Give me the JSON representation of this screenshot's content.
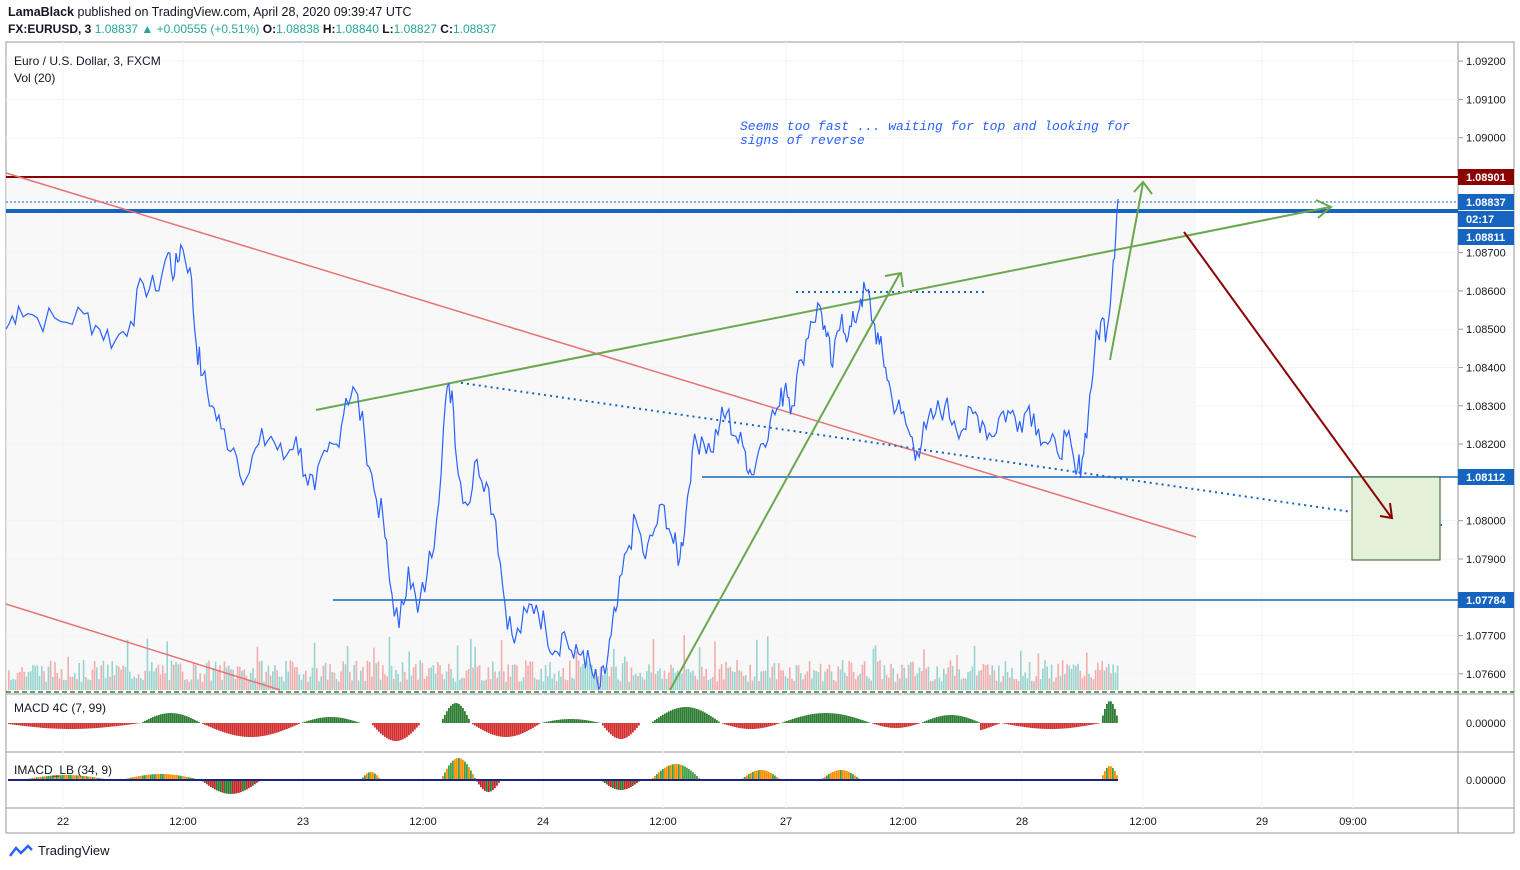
{
  "header": {
    "publisher": "LamaBlack",
    "published_text": "published on TradingView.com, April 28, 2020 09:39:47 UTC",
    "symbol": "FX:EURUSD, 3",
    "last": "1.08837",
    "change_arrow": "▲",
    "change": "+0.00555 (+0.51%)",
    "o_label": "O:",
    "o": "1.08838",
    "h_label": "H:",
    "h": "1.08840",
    "l_label": "L:",
    "l": "1.08827",
    "c_label": "C:",
    "c": "1.08837"
  },
  "legend": {
    "instrument": "Euro / U.S. Dollar, 3, FXCM",
    "volume": "Vol (20)",
    "macd": "MACD 4C (7, 99)",
    "imacd": "IMACD_LB (34, 9)"
  },
  "annotation": {
    "line1": "Seems too fast ... waiting for top and looking for",
    "line2": "signs of reverse"
  },
  "footer": {
    "brand": "TradingView",
    "logo_icon": "tradingview-logo-icon"
  },
  "colors": {
    "price_line": "#2962ff",
    "green_trend": "#6aa84f",
    "red_trend": "#e57373",
    "dark_red": "#8b0000",
    "horizontal_blue": "#1565c0",
    "macd_green": "#2e7d32",
    "macd_red": "#d32f2f"
  },
  "chart_data": {
    "type": "line",
    "symbol": "EURUSD",
    "interval": "3",
    "y_axis": {
      "ticks": [
        "1.09200",
        "1.09100",
        "1.09000",
        "1.08700",
        "1.08600",
        "1.08500",
        "1.08400",
        "1.08300",
        "1.08200",
        "1.08000",
        "1.07900",
        "1.07700",
        "1.07600"
      ],
      "range": [
        1.0755,
        1.0925
      ]
    },
    "price_labels": [
      {
        "value": "1.08901",
        "role": "resistance"
      },
      {
        "value": "1.08837",
        "role": "last"
      },
      {
        "value": "02:17",
        "role": "countdown"
      },
      {
        "value": "1.08811",
        "role": "level"
      },
      {
        "value": "1.08112",
        "role": "support"
      },
      {
        "value": "1.07784",
        "role": "support"
      }
    ],
    "x_axis": {
      "ticks": [
        "22",
        "12:00",
        "23",
        "12:00",
        "24",
        "12:00",
        "27",
        "12:00",
        "28",
        "12:00",
        "29",
        "09:00"
      ]
    },
    "macd_axis": {
      "ticks": [
        "0.00000"
      ]
    },
    "imacd_axis": {
      "ticks": [
        "0.00000"
      ]
    },
    "price_series": [
      [
        0,
        1.085
      ],
      [
        8,
        1.0856
      ],
      [
        20,
        1.0853
      ],
      [
        35,
        1.0852
      ],
      [
        50,
        1.0854
      ],
      [
        60,
        1.085
      ],
      [
        70,
        1.0847
      ],
      [
        80,
        1.0852
      ],
      [
        88,
        1.0862
      ],
      [
        96,
        1.086
      ],
      [
        104,
        1.087
      ],
      [
        108,
        1.0864
      ],
      [
        112,
        1.0872
      ],
      [
        118,
        1.0866
      ],
      [
        122,
        1.0846
      ],
      [
        126,
        1.0838
      ],
      [
        132,
        1.083
      ],
      [
        138,
        1.0824
      ],
      [
        146,
        1.0819
      ],
      [
        154,
        1.0811
      ],
      [
        162,
        1.082
      ],
      [
        170,
        1.0822
      ],
      [
        178,
        1.0816
      ],
      [
        186,
        1.0822
      ],
      [
        192,
        1.0812
      ],
      [
        198,
        1.0808
      ],
      [
        206,
        1.0818
      ],
      [
        212,
        1.082
      ],
      [
        218,
        1.0832
      ],
      [
        224,
        1.0834
      ],
      [
        230,
        1.0822
      ],
      [
        236,
        1.0808
      ],
      [
        242,
        1.08
      ],
      [
        246,
        1.0784
      ],
      [
        252,
        1.0772
      ],
      [
        258,
        1.0788
      ],
      [
        264,
        1.0776
      ],
      [
        270,
        1.0786
      ],
      [
        276,
        1.08
      ],
      [
        282,
        1.0832
      ],
      [
        286,
        1.0834
      ],
      [
        290,
        1.0812
      ],
      [
        296,
        1.0804
      ],
      [
        302,
        1.0816
      ],
      [
        308,
        1.081
      ],
      [
        314,
        1.08
      ],
      [
        320,
        1.0778
      ],
      [
        326,
        1.0768
      ],
      [
        334,
        1.0776
      ],
      [
        340,
        1.0778
      ],
      [
        346,
        1.0772
      ],
      [
        352,
        1.0766
      ],
      [
        358,
        1.0771
      ],
      [
        364,
        1.0764
      ],
      [
        370,
        1.0766
      ],
      [
        376,
        1.076
      ],
      [
        380,
        1.0756
      ],
      [
        384,
        1.076
      ],
      [
        388,
        1.077
      ],
      [
        392,
        1.0778
      ],
      [
        398,
        1.0792
      ],
      [
        404,
        1.08
      ],
      [
        410,
        1.079
      ],
      [
        416,
        1.0798
      ],
      [
        422,
        1.0804
      ],
      [
        428,
        1.0794
      ],
      [
        432,
        1.079
      ],
      [
        436,
        1.0802
      ],
      [
        440,
        1.0818
      ],
      [
        446,
        1.0822
      ],
      [
        452,
        1.0818
      ],
      [
        458,
        1.0826
      ],
      [
        462,
        1.0828
      ],
      [
        468,
        1.0822
      ],
      [
        474,
        1.0818
      ],
      [
        478,
        1.0812
      ],
      [
        484,
        1.082
      ],
      [
        490,
        1.0826
      ],
      [
        496,
        1.083
      ],
      [
        500,
        1.0836
      ],
      [
        504,
        1.083
      ],
      [
        510,
        1.0842
      ],
      [
        516,
        1.0852
      ],
      [
        522,
        1.0856
      ],
      [
        526,
        1.0848
      ],
      [
        530,
        1.084
      ],
      [
        536,
        1.0854
      ],
      [
        540,
        1.0848
      ],
      [
        544,
        1.0852
      ],
      [
        548,
        1.0858
      ],
      [
        552,
        1.086
      ],
      [
        556,
        1.0852
      ],
      [
        560,
        1.0846
      ],
      [
        564,
        1.084
      ],
      [
        568,
        1.0832
      ],
      [
        574,
        1.0828
      ],
      [
        580,
        1.0822
      ],
      [
        584,
        1.0818
      ],
      [
        590,
        1.0824
      ],
      [
        596,
        1.0828
      ],
      [
        602,
        1.083
      ],
      [
        608,
        1.0826
      ],
      [
        614,
        1.0824
      ],
      [
        620,
        1.0828
      ],
      [
        626,
        1.0826
      ],
      [
        632,
        1.0822
      ],
      [
        638,
        1.0828
      ],
      [
        644,
        1.0828
      ],
      [
        650,
        1.0826
      ],
      [
        656,
        1.083
      ],
      [
        662,
        1.0824
      ],
      [
        668,
        1.082
      ],
      [
        674,
        1.0818
      ],
      [
        680,
        1.0822
      ],
      [
        686,
        1.0812
      ],
      [
        690,
        1.0816
      ],
      [
        694,
        1.0828
      ],
      [
        698,
        1.0844
      ],
      [
        702,
        1.0852
      ],
      [
        706,
        1.085
      ],
      [
        710,
        1.0868
      ],
      [
        713,
        1.0884
      ]
    ],
    "volume_note": "Vol (20) histogram at bottom of price pane",
    "drawings": [
      {
        "type": "hline",
        "price": 1.08901,
        "color": "#8b0000"
      },
      {
        "type": "hline",
        "price": 1.08837,
        "style": "dotted",
        "color": "#1565c0"
      },
      {
        "type": "hline",
        "price": 1.08811,
        "color": "#1565c0"
      },
      {
        "type": "hline",
        "price": 1.08112,
        "color": "#1565c0"
      },
      {
        "type": "hline",
        "price": 1.07784,
        "color": "#1565c0"
      }
    ]
  }
}
